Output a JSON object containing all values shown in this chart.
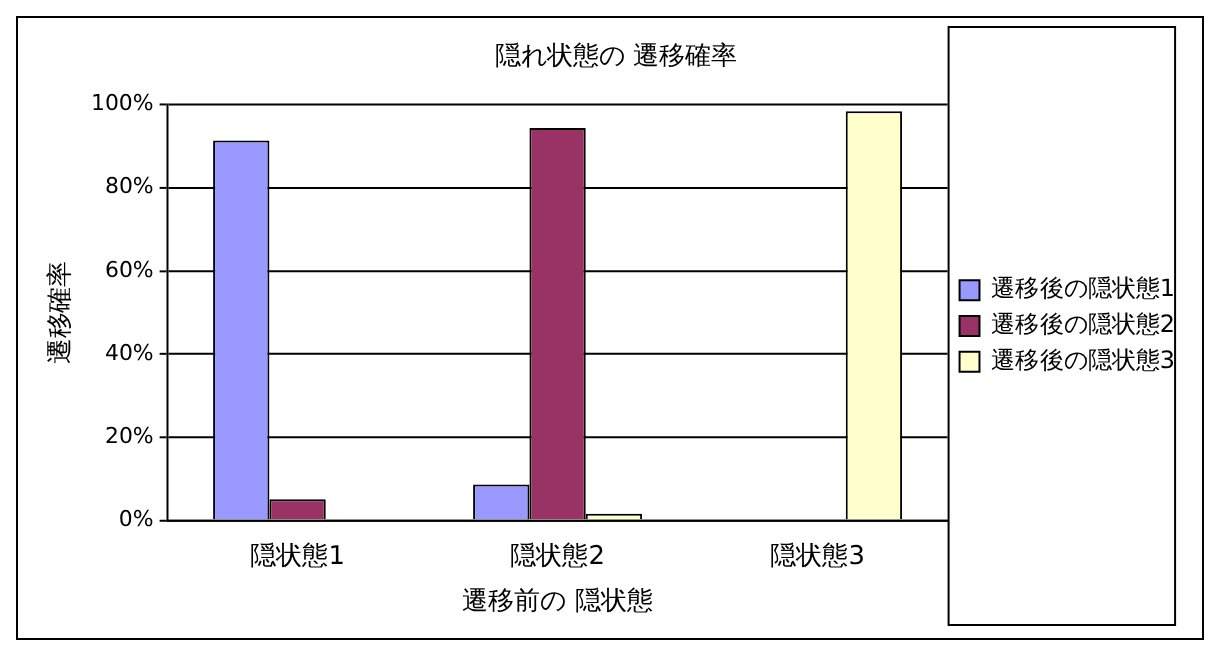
{
  "chart_data": {
    "type": "bar",
    "title": "隠れ状態の 遷移確率",
    "xlabel": "遷移前の 隠状態",
    "ylabel": "遷移確率",
    "categories": [
      "隠状態1",
      "隠状態2",
      "隠状態3"
    ],
    "series": [
      {
        "name": "遷移後の隠状態1",
        "color": "#9999ff",
        "values": [
          91.4,
          8.6,
          0
        ]
      },
      {
        "name": "遷移後の隠状態2",
        "color": "#993366",
        "values": [
          5.1,
          94.4,
          0
        ]
      },
      {
        "name": "遷移後の隠状態3",
        "color": "#ffffcc",
        "values": [
          0,
          1.6,
          98.4
        ]
      }
    ],
    "ylim": [
      0,
      100
    ],
    "yticks": [
      {
        "value": 0,
        "label": "0%"
      },
      {
        "value": 20,
        "label": "20%"
      },
      {
        "value": 40,
        "label": "40%"
      },
      {
        "value": 60,
        "label": "60%"
      },
      {
        "value": 80,
        "label": "80%"
      },
      {
        "value": 100,
        "label": "100%"
      }
    ],
    "grid": "y",
    "legend": "right"
  }
}
